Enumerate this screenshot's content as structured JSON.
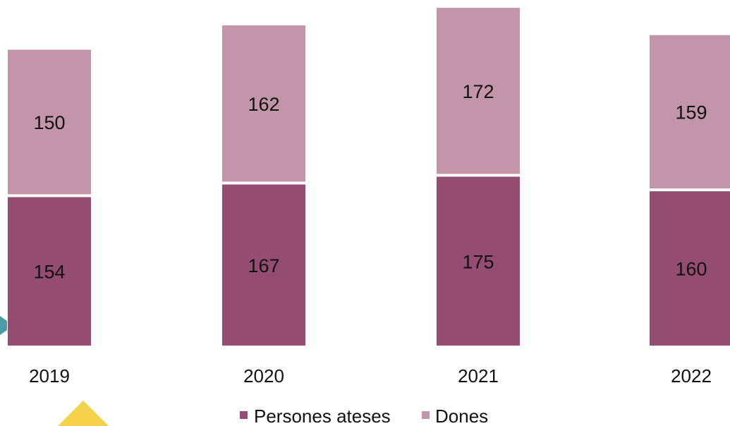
{
  "chart_data": {
    "type": "bar",
    "stacked": true,
    "categories": [
      "2019",
      "2020",
      "2021",
      "2022"
    ],
    "series": [
      {
        "name": "Persones ateses",
        "values": [
          154,
          167,
          175,
          160
        ],
        "color": "#944d70"
      },
      {
        "name": "Dones",
        "values": [
          150,
          162,
          172,
          159
        ],
        "color": "#c296a8"
      }
    ],
    "legend_position": "bottom",
    "grid": false,
    "ylim": [
      0,
      360
    ]
  },
  "decorations": {
    "teal_shape_color": "#4a9ba6",
    "yellow_triangle_color": "#f6d24a"
  }
}
